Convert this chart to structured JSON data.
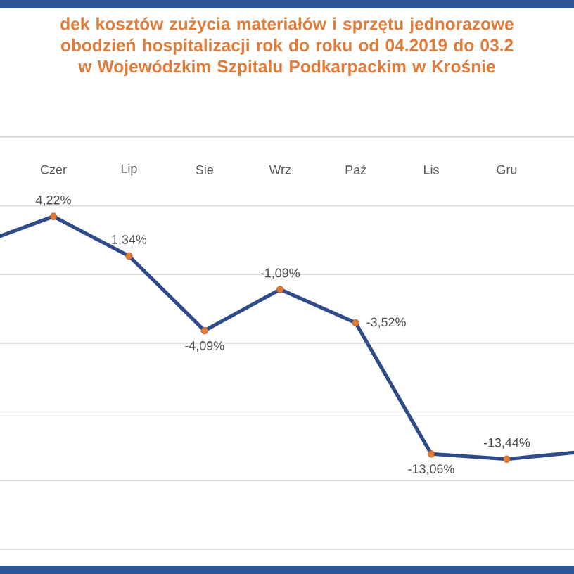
{
  "chart_data": {
    "type": "line",
    "title": "dek kosztów zużycia materiałów i sprzętu jednorazowe obodzień hospitalizacji rok do roku od 04.2019 do 03.2 w Wojewódzkim Szpitalu Podkarpackim w Krośnie",
    "categories": [
      null,
      "Czer",
      "Lip",
      "Sie",
      "Wrz",
      "Paź",
      "Lis",
      "Gru",
      null
    ],
    "series": [
      {
        "color": "#2f4b8a",
        "values": [
          2.2,
          4.22,
          1.34,
          -4.09,
          -1.09,
          -3.52,
          -13.06,
          -13.44,
          -12.9
        ],
        "value_labels": [
          null,
          "4,22%",
          "1,34%",
          "-4,09%",
          "-1,09%",
          "-3,52%",
          "-13,06%",
          "-13,44%",
          null
        ]
      }
    ],
    "ylim": [
      -20,
      10
    ],
    "yticks": [
      {
        "value": -20,
        "label": null
      },
      {
        "value": -15,
        "label": null
      },
      {
        "value": -10,
        "label": null
      },
      {
        "value": -5,
        "label": null
      },
      {
        "value": 0,
        "label": null
      },
      {
        "value": 5,
        "label": null
      },
      {
        "value": 10,
        "label": null
      }
    ],
    "grid": "y",
    "tick_labels": "x",
    "marker": "circle",
    "line_style": "solid"
  }
}
